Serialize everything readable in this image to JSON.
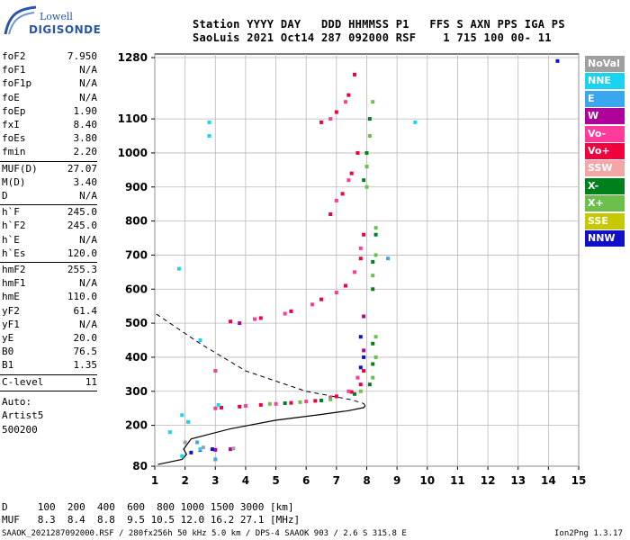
{
  "logo": {
    "top": "Lowell",
    "bottom": "DIGISONDE"
  },
  "header": {
    "line1": "Station YYYY DAY   DDD HHMMSS P1   FFS S AXN PPS IGA PS",
    "line2": "SaoLuis 2021 Oct14 287 092000 RSF    1 715 100 00- 11"
  },
  "params": [
    {
      "k": "foF2",
      "v": "7.950"
    },
    {
      "k": "foF1",
      "v": "N/A"
    },
    {
      "k": "foF1p",
      "v": "N/A"
    },
    {
      "k": "foE",
      "v": "N/A"
    },
    {
      "k": "foEp",
      "v": "1.90"
    },
    {
      "k": "fxI",
      "v": "8.40"
    },
    {
      "k": "foEs",
      "v": "3.80"
    },
    {
      "k": "fmin",
      "v": "2.20"
    },
    {
      "k": "MUF(D)",
      "v": "27.07"
    },
    {
      "k": "M(D)",
      "v": "3.40"
    },
    {
      "k": "D",
      "v": "N/A"
    },
    {
      "k": "h`F",
      "v": "245.0"
    },
    {
      "k": "h`F2",
      "v": "245.0"
    },
    {
      "k": "h`E",
      "v": "N/A"
    },
    {
      "k": "h`Es",
      "v": "120.0"
    },
    {
      "k": "hmF2",
      "v": "255.3"
    },
    {
      "k": "hmF1",
      "v": "N/A"
    },
    {
      "k": "hmE",
      "v": "110.0"
    },
    {
      "k": "yF2",
      "v": "61.4"
    },
    {
      "k": "yF1",
      "v": "N/A"
    },
    {
      "k": "yE",
      "v": "20.0"
    },
    {
      "k": "B0",
      "v": "76.5"
    },
    {
      "k": "B1",
      "v": "1.35"
    },
    {
      "k": "C-level",
      "v": "11"
    }
  ],
  "auto": {
    "label": "Auto:",
    "artist": "Artist5",
    "code": "500200"
  },
  "legend": [
    {
      "label": "NoVal",
      "color": "#a0a0a0"
    },
    {
      "label": "NNE",
      "color": "#19d3f0"
    },
    {
      "label": "E",
      "color": "#3aa6f0"
    },
    {
      "label": "W",
      "color": "#b0009a"
    },
    {
      "label": "Vo-",
      "color": "#ff3c9a"
    },
    {
      "label": "Vo+",
      "color": "#f0003c"
    },
    {
      "label": "SSW",
      "color": "#f3a6a6"
    },
    {
      "label": "X-",
      "color": "#00801c"
    },
    {
      "label": "X+",
      "color": "#6cbf4a"
    },
    {
      "label": "SSE",
      "color": "#c8c800"
    },
    {
      "label": "NNW",
      "color": "#1010c8"
    }
  ],
  "muf": {
    "d_line": "D     100  200  400  600  800 1000 1500 3000 [km]",
    "muf_line": "MUF   8.3  8.4  8.8  9.5 10.5 12.0 16.2 27.1 [MHz]"
  },
  "footer": {
    "left": "SAAOK_2021287092000.RSF / 280fx256h 50 kHz 5.0 km / DPS-4 SAAOK 903 / 2.6 S 315.8 E",
    "right": "Ion2Png 1.3.17"
  },
  "chart_data": {
    "type": "scatter",
    "title": "",
    "xlabel": "",
    "ylabel": "",
    "xlim": [
      1,
      15
    ],
    "ylim": [
      80,
      1280
    ],
    "x_ticks": [
      1,
      2,
      3,
      4,
      5,
      6,
      7,
      8,
      9,
      10,
      11,
      12,
      13,
      14,
      15
    ],
    "y_ticks": [
      80,
      200,
      300,
      400,
      500,
      600,
      700,
      800,
      900,
      1000,
      1100,
      1280
    ],
    "grid": true,
    "series": [
      {
        "name": "Vo+",
        "points": [
          [
            3.2,
            252
          ],
          [
            3.8,
            255
          ],
          [
            4.5,
            260
          ],
          [
            5.5,
            266
          ],
          [
            6.3,
            272
          ],
          [
            7.0,
            285
          ],
          [
            7.5,
            298
          ],
          [
            7.8,
            320
          ],
          [
            7.9,
            360
          ],
          [
            3.5,
            505
          ],
          [
            4.5,
            515
          ],
          [
            5.5,
            535
          ],
          [
            6.5,
            570
          ],
          [
            7.3,
            610
          ],
          [
            7.8,
            690
          ],
          [
            7.9,
            760
          ],
          [
            6.8,
            820
          ],
          [
            7.2,
            880
          ],
          [
            7.5,
            940
          ],
          [
            7.7,
            1000
          ],
          [
            6.5,
            1090
          ],
          [
            7.0,
            1120
          ],
          [
            7.4,
            1170
          ],
          [
            7.6,
            1230
          ]
        ]
      },
      {
        "name": "Vo-",
        "points": [
          [
            3.0,
            250
          ],
          [
            4.0,
            257
          ],
          [
            5.0,
            263
          ],
          [
            6.0,
            270
          ],
          [
            6.8,
            282
          ],
          [
            7.4,
            300
          ],
          [
            7.7,
            340
          ],
          [
            3.0,
            360
          ],
          [
            4.3,
            512
          ],
          [
            5.3,
            528
          ],
          [
            6.2,
            555
          ],
          [
            7.0,
            590
          ],
          [
            7.6,
            650
          ],
          [
            7.8,
            720
          ],
          [
            7.0,
            860
          ],
          [
            7.4,
            920
          ],
          [
            6.8,
            1100
          ],
          [
            7.3,
            1150
          ]
        ]
      },
      {
        "name": "X+",
        "points": [
          [
            4.8,
            263
          ],
          [
            5.8,
            268
          ],
          [
            6.8,
            276
          ],
          [
            7.8,
            300
          ],
          [
            8.2,
            340
          ],
          [
            8.3,
            400
          ],
          [
            8.3,
            460
          ],
          [
            8.2,
            640
          ],
          [
            8.3,
            700
          ],
          [
            8.3,
            780
          ],
          [
            8.0,
            900
          ],
          [
            8.0,
            960
          ],
          [
            8.1,
            1050
          ],
          [
            8.2,
            1150
          ]
        ]
      },
      {
        "name": "X-",
        "points": [
          [
            5.3,
            265
          ],
          [
            6.5,
            273
          ],
          [
            7.6,
            292
          ],
          [
            8.1,
            320
          ],
          [
            8.2,
            380
          ],
          [
            8.2,
            440
          ],
          [
            8.2,
            600
          ],
          [
            8.2,
            680
          ],
          [
            8.3,
            760
          ],
          [
            7.9,
            920
          ],
          [
            8.0,
            1000
          ],
          [
            8.1,
            1100
          ]
        ]
      },
      {
        "name": "NNW",
        "points": [
          [
            2.2,
            120
          ],
          [
            2.5,
            128
          ],
          [
            2.9,
            130
          ],
          [
            7.8,
            370
          ],
          [
            7.9,
            400
          ],
          [
            7.8,
            460
          ],
          [
            14.3,
            1270
          ]
        ]
      },
      {
        "name": "W",
        "points": [
          [
            3.0,
            128
          ],
          [
            3.5,
            130
          ],
          [
            7.9,
            420
          ],
          [
            7.9,
            520
          ],
          [
            3.8,
            500
          ]
        ]
      },
      {
        "name": "NNE",
        "points": [
          [
            1.5,
            180
          ],
          [
            2.1,
            210
          ],
          [
            1.9,
            230
          ],
          [
            2.5,
            450
          ],
          [
            3.1,
            260
          ],
          [
            2.8,
            1090
          ],
          [
            2.8,
            1050
          ],
          [
            9.6,
            1090
          ],
          [
            1.8,
            660
          ],
          [
            2.5,
            130
          ],
          [
            1.9,
            110
          ]
        ]
      },
      {
        "name": "E",
        "points": [
          [
            3.0,
            100
          ],
          [
            2.4,
            150
          ],
          [
            8.7,
            690
          ]
        ]
      },
      {
        "name": "NoVal",
        "points": [
          [
            2.6,
            135
          ],
          [
            3.6,
            132
          ],
          [
            2.0,
            150
          ]
        ]
      }
    ],
    "profile": {
      "name": "electron density profile",
      "points": [
        [
          1.1,
          85
        ],
        [
          1.9,
          100
        ],
        [
          2.05,
          115
        ],
        [
          1.95,
          130
        ],
        [
          2.2,
          160
        ],
        [
          3.5,
          190
        ],
        [
          5.0,
          215
        ],
        [
          6.5,
          232
        ],
        [
          7.4,
          243
        ],
        [
          7.9,
          252
        ],
        [
          7.95,
          258
        ],
        [
          7.9,
          264
        ],
        [
          7.5,
          275
        ],
        [
          6.0,
          300
        ],
        [
          4.0,
          360
        ],
        [
          2.5,
          440
        ],
        [
          1.0,
          530
        ]
      ]
    }
  }
}
